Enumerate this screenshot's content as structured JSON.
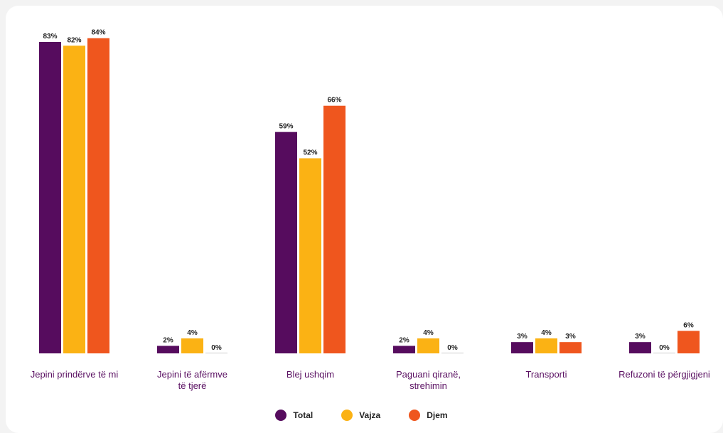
{
  "chart_data": {
    "type": "bar",
    "categories": [
      "Jepini prindërve të mi",
      [
        "Jepini të afërmve",
        "të tjerë"
      ],
      "Blej ushqim",
      [
        "Paguani qiranë,",
        "strehimin"
      ],
      "Transporti",
      "Refuzoni të përgjigjeni"
    ],
    "series": [
      {
        "name": "Total",
        "color": "#560c5e",
        "values": [
          83,
          2,
          59,
          2,
          3,
          3
        ],
        "labels": [
          "83%",
          "2%",
          "59%",
          "2%",
          "3%",
          "3%"
        ]
      },
      {
        "name": "Vajza",
        "color": "#fbb214",
        "values": [
          82,
          4,
          52,
          4,
          4,
          0
        ],
        "labels": [
          "82%",
          "4%",
          "52%",
          "4%",
          "4%",
          "0%"
        ]
      },
      {
        "name": "Djem",
        "color": "#ef561e",
        "values": [
          84,
          0,
          66,
          0,
          3,
          6
        ],
        "labels": [
          "84%",
          "0%",
          "66%",
          "0%",
          "3%",
          "6%"
        ]
      }
    ],
    "ylim": [
      0,
      100
    ],
    "grid": false,
    "legend_position": "bottom-center",
    "title": "",
    "xlabel": "",
    "ylabel": ""
  }
}
